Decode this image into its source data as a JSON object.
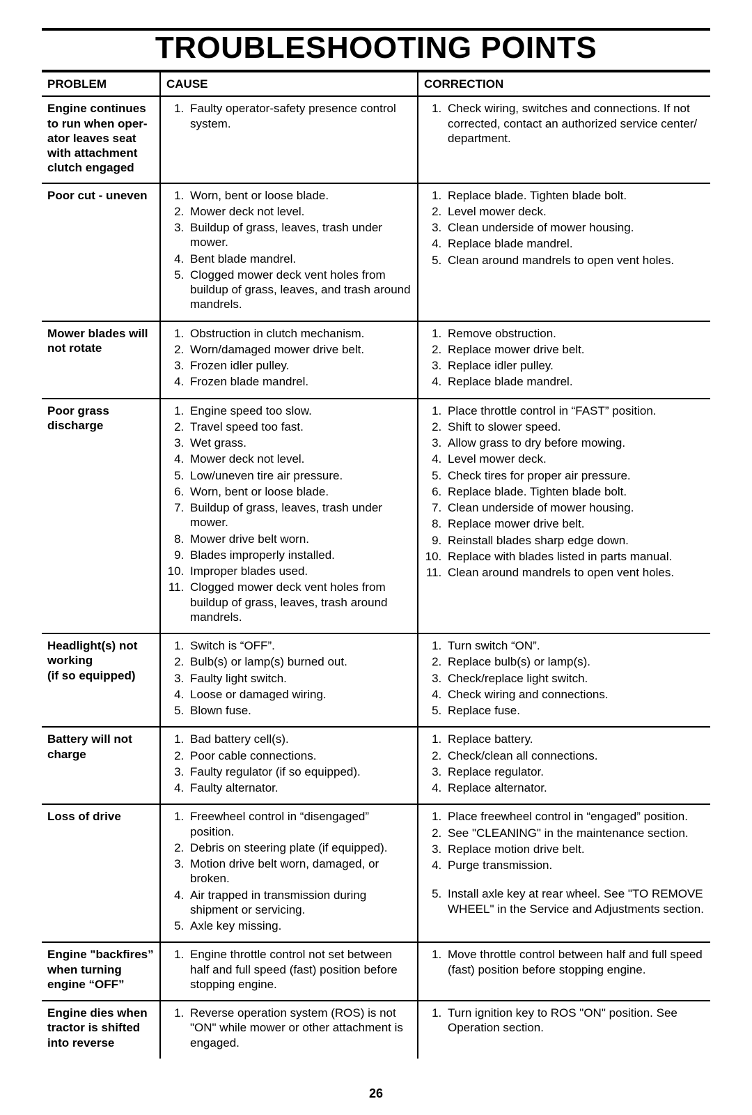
{
  "title": "TROUBLESHOOTING POINTS",
  "page_number": "26",
  "headers": {
    "problem": "PROBLEM",
    "cause": "CAUSE",
    "correction": "CORRECTION"
  },
  "rows": [
    {
      "problem": "Engine continues to run when oper­ator leaves seat with attachment clutch engaged",
      "causes": [
        "Faulty operator-safety presence control system."
      ],
      "corrections": [
        "Check wiring, switches  and connections.  If not corrected, contact an authorized service center/ department."
      ]
    },
    {
      "problem": "Poor cut - uneven",
      "causes": [
        "Worn, bent or loose blade.",
        "Mower deck not level.",
        "Buildup of grass, leaves, trash under mower.",
        "Bent blade mandrel.",
        "Clogged mower deck vent holes from buildup of grass, leaves, and trash around mandrels."
      ],
      "corrections": [
        "Replace blade.  Tighten blade bolt.",
        "Level mower deck.",
        "Clean underside of mower housing.",
        "Replace blade mandrel.",
        "Clean around mandrels to open vent holes."
      ]
    },
    {
      "problem": "Mower blades will not rotate",
      "causes": [
        "Obstruction in clutch mechanism.",
        "Worn/damaged mower drive belt.",
        "Frozen idler pulley.",
        "Frozen blade mandrel."
      ],
      "corrections": [
        "Remove obstruction.",
        "Replace mower drive belt.",
        "Replace idler pulley.",
        "Replace blade mandrel."
      ]
    },
    {
      "problem": "Poor grass discharge",
      "causes": [
        "Engine speed too slow.",
        "Travel speed too fast.",
        "Wet grass.",
        "Mower deck not level.",
        "Low/uneven tire air pressure.",
        "Worn, bent or loose blade.",
        "Buildup of grass, leaves, trash under mower.",
        "Mower drive belt worn.",
        "Blades improperly installed.",
        "Improper blades used.",
        "Clogged mower deck vent holes from buildup of grass, leaves, trash around mandrels."
      ],
      "corrections": [
        "Place throttle control in “FAST” position.",
        "Shift to slower speed.",
        "Allow grass to dry before mowing.",
        "Level mower deck.",
        "Check tires for proper air pressure.",
        "Replace blade.  Tighten blade bolt.",
        "Clean underside of mower housing.",
        "Replace mower drive belt.",
        "Reinstall blades sharp edge down.",
        "Replace with blades listed in parts manual.",
        "Clean around mandrels to open vent holes."
      ]
    },
    {
      "problem": "Headlight(s) not working\n(if so equipped)",
      "causes": [
        "Switch is “OFF”.",
        "Bulb(s) or lamp(s) burned out.",
        "Faulty light switch.",
        "Loose or damaged wiring.",
        "Blown fuse."
      ],
      "corrections": [
        "Turn switch “ON”.",
        "Replace bulb(s) or lamp(s).",
        "Check/replace light switch.",
        "Check wiring and connections.",
        "Replace fuse."
      ]
    },
    {
      "problem": "Battery will not charge",
      "causes": [
        "Bad battery cell(s).",
        "Poor cable connections.",
        "Faulty regulator (if so equipped).",
        "Faulty alternator."
      ],
      "corrections": [
        "Replace battery.",
        "Check/clean all connections.",
        "Replace regulator.",
        "Replace alternator."
      ]
    },
    {
      "problem": "Loss of drive",
      "causes": [
        "Freewheel control in “disengaged” position.",
        "Debris on steering plate (if equipped).",
        "Motion drive belt worn, damaged, or broken.",
        "Air trapped in transmission during shipment or servicing.",
        "Axle key missing."
      ],
      "corrections": [
        "Place freewheel control in “engaged” position.",
        "See \"CLEANING\" in the maintenance section.",
        "Replace motion drive belt.",
        "Purge transmission.",
        "Install axle key at rear wheel.  See \"TO REMOVE WHEEL\" in the Service and Adjustments section."
      ],
      "correction_spacer_before": 5
    },
    {
      "problem": "Engine \"back­fires” when turn­ing engine “OFF”",
      "causes": [
        "Engine throttle control not set between half and full speed (fast) position before stopping engine."
      ],
      "corrections": [
        "Move throttle control between half and full speed (fast) position before stopping engine."
      ]
    },
    {
      "problem": "Engine dies when tractor is shifted into reverse",
      "causes": [
        "Reverse operation system (ROS) is not \"ON\" while mower or other attachment is engaged."
      ],
      "corrections": [
        "Turn ignition key to ROS \"ON\" position. See Operation section."
      ]
    }
  ]
}
